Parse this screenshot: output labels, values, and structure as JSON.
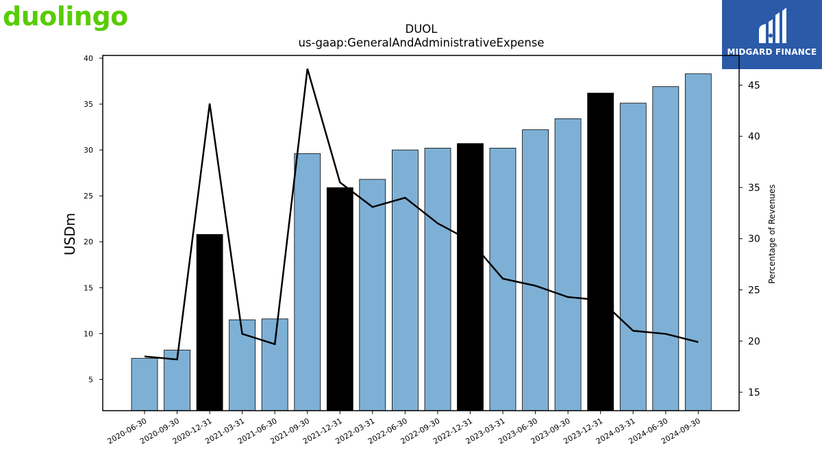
{
  "header": {
    "logo_left_text": "duolingo",
    "logo_left_color": "#58cc02",
    "logo_right_text": "MIDGARD FINANCE",
    "logo_right_bg": "#2a5aa8"
  },
  "chart_data": {
    "type": "bar",
    "title": "DUOL",
    "subtitle": "us-gaap:GeneralAndAdministrativeExpense",
    "ylabel": "USDm",
    "y2label": "Percentage of Revenues",
    "ylim": [
      1.6,
      40.3
    ],
    "y2lim": [
      13.2,
      47.9
    ],
    "yticks": [
      5,
      10,
      15,
      20,
      25,
      30,
      35,
      40
    ],
    "y2ticks": [
      15,
      20,
      25,
      30,
      35,
      40,
      45
    ],
    "grid": false,
    "categories": [
      "2020-06-30",
      "2020-09-30",
      "2020-12-31",
      "2021-03-31",
      "2021-06-30",
      "2021-09-30",
      "2021-12-31",
      "2022-03-31",
      "2022-06-30",
      "2022-09-30",
      "2022-12-31",
      "2023-03-31",
      "2023-06-30",
      "2023-09-30",
      "2023-12-31",
      "2024-03-31",
      "2024-06-30",
      "2024-09-30"
    ],
    "series": [
      {
        "values": [
          7.3,
          8.2,
          20.8,
          11.5,
          11.6,
          29.6,
          25.9,
          26.8,
          30.0,
          30.2,
          30.7,
          30.2,
          32.2,
          33.4,
          36.2,
          35.1,
          36.9,
          38.3
        ],
        "highlight": [
          false,
          false,
          true,
          false,
          false,
          false,
          true,
          false,
          false,
          false,
          true,
          false,
          false,
          false,
          true,
          false,
          false,
          false
        ],
        "color": "#7eb0d5",
        "highlight_color": "#000000"
      },
      {
        "values": [
          18.5,
          18.2,
          43.2,
          20.7,
          19.7,
          46.6,
          35.5,
          33.1,
          34.0,
          31.5,
          29.8,
          26.1,
          25.4,
          24.3,
          24.0,
          21.0,
          20.7,
          19.9
        ],
        "axis": "right",
        "type": "line",
        "color": "#000000"
      }
    ]
  }
}
